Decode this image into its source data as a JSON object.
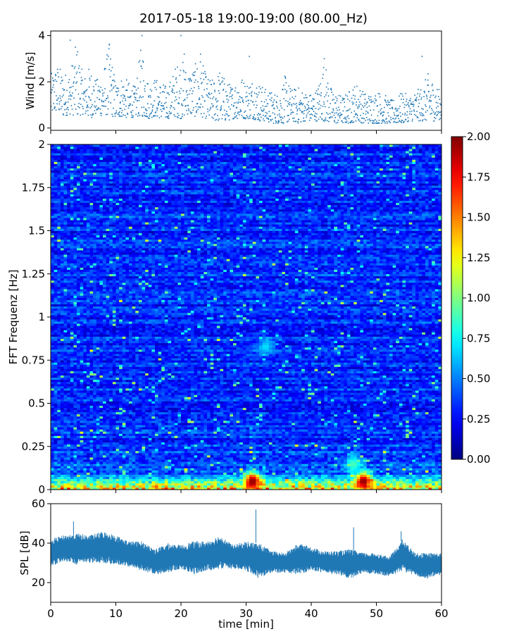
{
  "figure": {
    "title": "2017-05-18 19:00-19:00 (80.00_Hz)"
  },
  "chart_data": [
    {
      "type": "scatter",
      "panel": "wind",
      "ylabel": "Wind [m/s]",
      "xlim": [
        0,
        60
      ],
      "ylim": [
        -0.1,
        4.2
      ],
      "yticks": [
        0,
        2,
        4
      ],
      "marker_color": "#1f77b4",
      "grid": false,
      "x_tick_labels_shown": false,
      "sample_count": 1500,
      "envelope": {
        "x": [
          0,
          1,
          2,
          3,
          4,
          5,
          6,
          7,
          8,
          9,
          10,
          11,
          12,
          13,
          14,
          15,
          16,
          17,
          18,
          19,
          20,
          21,
          22,
          23,
          24,
          25,
          26,
          27,
          28,
          29,
          30,
          31,
          32,
          33,
          34,
          35,
          36,
          37,
          38,
          39,
          40,
          41,
          42,
          43,
          44,
          45,
          46,
          47,
          48,
          49,
          50,
          51,
          52,
          53,
          54,
          55,
          56,
          57,
          58,
          59,
          60
        ],
        "low": [
          0.6,
          0.7,
          0.5,
          0.6,
          0.5,
          0.6,
          0.4,
          0.6,
          0.5,
          0.6,
          0.4,
          0.5,
          0.4,
          0.5,
          0.5,
          0.4,
          0.5,
          0.4,
          0.4,
          0.5,
          0.4,
          0.6,
          0.5,
          0.5,
          0.4,
          0.3,
          0.3,
          0.3,
          0.4,
          0.4,
          0.4,
          0.4,
          0.3,
          0.3,
          0.2,
          0.2,
          0.2,
          0.3,
          0.2,
          0.3,
          0.3,
          0.3,
          0.3,
          0.2,
          0.2,
          0.2,
          0.2,
          0.3,
          0.2,
          0.2,
          0.2,
          0.2,
          0.2,
          0.2,
          0.2,
          0.3,
          0.3,
          0.3,
          0.3,
          0.3,
          0.4
        ],
        "high": [
          2.3,
          2.8,
          2.4,
          2.5,
          3.8,
          2.2,
          2.7,
          2.1,
          2.4,
          3.7,
          2.0,
          2.3,
          2.0,
          1.8,
          3.8,
          2.0,
          2.2,
          2.0,
          1.8,
          2.6,
          3.1,
          2.5,
          2.7,
          3.1,
          2.2,
          2.1,
          2.6,
          2.0,
          1.9,
          2.4,
          2.0,
          2.2,
          2.0,
          1.7,
          1.6,
          1.5,
          2.3,
          1.7,
          1.8,
          1.6,
          1.5,
          1.8,
          3.0,
          1.8,
          1.5,
          1.4,
          1.7,
          2.0,
          1.6,
          1.5,
          1.6,
          1.6,
          1.2,
          1.3,
          1.6,
          1.4,
          1.6,
          1.8,
          2.4,
          2.0,
          1.5
        ]
      },
      "peaks": [
        {
          "x": 3.0,
          "y": 3.8
        },
        {
          "x": 9.0,
          "y": 3.6
        },
        {
          "x": 14.0,
          "y": 4.0
        },
        {
          "x": 20.0,
          "y": 4.0
        },
        {
          "x": 20.5,
          "y": 3.2
        },
        {
          "x": 23.0,
          "y": 3.2
        },
        {
          "x": 30.5,
          "y": 3.1
        },
        {
          "x": 42.0,
          "y": 3.0
        },
        {
          "x": 57.0,
          "y": 3.1
        }
      ]
    },
    {
      "type": "heatmap",
      "panel": "spectrogram",
      "ylabel": "FFT Frequenz [Hz]",
      "xlim": [
        0,
        60
      ],
      "ylim": [
        0,
        2
      ],
      "yticks": [
        0,
        0.25,
        0.5,
        0.75,
        1,
        1.25,
        1.5,
        1.75,
        2
      ],
      "ytick_labels": [
        "0",
        "0.25",
        "0.5",
        "0.75",
        "1",
        "1.25",
        "1.5",
        "1.75",
        "2"
      ],
      "colormap": "jet",
      "color_range": [
        0.0,
        2.0
      ],
      "colorbar_ticks": [
        "0.00",
        "0.25",
        "0.50",
        "0.75",
        "1.00",
        "1.25",
        "1.50",
        "1.75",
        "2.00"
      ],
      "time_bins": 120,
      "freq_bins": 160,
      "typical_level": 0.3,
      "low_frequency_band": {
        "freq_max": 0.1,
        "level": 1.6
      },
      "hot_spots": [
        {
          "x": 31.0,
          "freq": 0.05,
          "level": 2.0
        },
        {
          "x": 48.0,
          "freq": 0.05,
          "level": 2.0
        },
        {
          "x": 46.5,
          "freq": 0.15,
          "level": 0.9
        },
        {
          "x": 33.0,
          "freq": 0.83,
          "level": 0.7
        }
      ],
      "x_tick_labels_shown": false
    },
    {
      "type": "area",
      "panel": "spl",
      "ylabel": "SPL [dB]",
      "xlabel": "time [min]",
      "xlim": [
        0,
        60
      ],
      "ylim": [
        10,
        60
      ],
      "yticks": [
        20,
        40,
        60
      ],
      "xticks": [
        0,
        10,
        20,
        30,
        40,
        50,
        60
      ],
      "color": "#1f77b4",
      "x": [
        0,
        2,
        4,
        6,
        8,
        10,
        12,
        14,
        16,
        18,
        20,
        22,
        24,
        26,
        28,
        30,
        32,
        34,
        36,
        38,
        40,
        42,
        44,
        46,
        48,
        50,
        52,
        54,
        56,
        58,
        60
      ],
      "low": [
        28,
        31,
        29,
        30,
        30,
        29,
        28,
        26,
        24,
        25,
        27,
        24,
        26,
        27,
        27,
        26,
        22,
        25,
        25,
        24,
        26,
        25,
        24,
        22,
        25,
        24,
        23,
        26,
        23,
        22,
        24
      ],
      "high": [
        42,
        44,
        45,
        44,
        46,
        44,
        41,
        41,
        37,
        40,
        39,
        41,
        41,
        44,
        39,
        41,
        40,
        36,
        35,
        40,
        38,
        36,
        36,
        37,
        35,
        35,
        33,
        42,
        35,
        35,
        35
      ],
      "spikes": [
        {
          "x": 31.5,
          "y": 57
        },
        {
          "x": 46.5,
          "y": 48
        },
        {
          "x": 3.5,
          "y": 51
        },
        {
          "x": 53.8,
          "y": 46
        }
      ]
    }
  ]
}
